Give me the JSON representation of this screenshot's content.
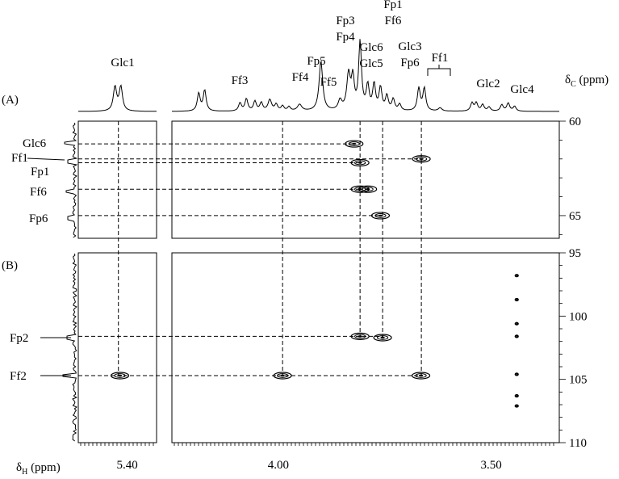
{
  "chart_data": {
    "type": "2D NMR (HSQC / HMBC)",
    "panels": [
      {
        "label": "(A)",
        "yrange": [
          60,
          66.2
        ],
        "ticks": [
          60,
          65
        ]
      },
      {
        "label": "(B)",
        "yrange": [
          95,
          110
        ],
        "ticks": [
          95,
          100,
          105,
          110
        ]
      }
    ],
    "xlabel": "δH (ppm)",
    "ylabel": "δC (ppm)",
    "xlim": [
      5.5,
      3.34
    ],
    "xticks": [
      {
        "value": 5.4,
        "label": "5.40"
      },
      {
        "value": 4.0,
        "label": "4.00"
      },
      {
        "value": 3.5,
        "label": "3.50"
      }
    ],
    "ylabels": {
      "top": "60",
      "a_low": "65",
      "b": [
        "95",
        "100",
        "105",
        "110"
      ]
    },
    "proton_peaks": [
      {
        "name": "Glc1",
        "label_lines": [
          "Glc1"
        ],
        "shift": 5.418
      },
      {
        "name": "Ff3",
        "label_lines": [
          "Ff3"
        ],
        "shift": 4.18
      },
      {
        "name": "Ff4",
        "label_lines": [
          "Ff4"
        ],
        "shift": 4.07
      },
      {
        "name": "Fp5",
        "label_lines": [
          "Fp5"
        ],
        "shift": 4.03
      },
      {
        "name": "Ff5",
        "label_lines": [
          "Ff5"
        ],
        "shift": 3.99
      },
      {
        "name": "Fp3 Fp4",
        "label_lines": [
          "Fp3",
          "Fp4"
        ],
        "shift": 3.9
      },
      {
        "name": "Glc6 Glc5",
        "label_lines": [
          "Glc6",
          "Glc5"
        ],
        "shift": 3.835
      },
      {
        "name": "Fp1 Ff6",
        "label_lines": [
          "Fp1",
          "Ff6"
        ],
        "shift": 3.807
      },
      {
        "name": "Glc3 Fp6",
        "label_lines": [
          "Glc3",
          "Fp6"
        ],
        "shift": 3.755
      },
      {
        "name": "Ff1",
        "label_lines": [
          "Ff1"
        ],
        "shift": 3.66
      },
      {
        "name": "Glc2",
        "label_lines": [
          "Glc2"
        ],
        "shift": 3.54
      },
      {
        "name": "Glc4",
        "label_lines": [
          "Glc4"
        ],
        "shift": 3.47
      }
    ],
    "carbon_labels": [
      {
        "name": "Glc6",
        "text": "Glc6",
        "delta_c": 61.2
      },
      {
        "name": "Ff1",
        "text": "Ff1",
        "delta_c": 62.0
      },
      {
        "name": "Fp1",
        "text": "Fp1",
        "delta_c": 62.2
      },
      {
        "name": "Ff6",
        "text": "Ff6",
        "delta_c": 63.6
      },
      {
        "name": "Fp6",
        "text": "Fp6",
        "delta_c": 65.0
      },
      {
        "name": "Fp2",
        "text": "Fp2",
        "delta_c": 101.7
      },
      {
        "name": "Ff2",
        "text": "Ff2",
        "delta_c": 104.7
      }
    ],
    "cross_peaks": [
      {
        "panel": "A",
        "x": 3.822,
        "y": 61.2,
        "assignment": "Glc6"
      },
      {
        "panel": "A",
        "x": 3.808,
        "y": 62.2,
        "assignment": "Fp1"
      },
      {
        "panel": "A",
        "x": 3.664,
        "y": 62.0,
        "assignment": "Ff1"
      },
      {
        "panel": "A",
        "x": 3.808,
        "y": 63.6,
        "assignment": "Ff6"
      },
      {
        "panel": "A",
        "x": 3.79,
        "y": 63.6,
        "assignment": "Ff6"
      },
      {
        "panel": "A",
        "x": 3.76,
        "y": 65.0,
        "assignment": "Fp6"
      },
      {
        "panel": "B",
        "x": 3.808,
        "y": 101.6,
        "assignment": "Fp2"
      },
      {
        "panel": "B",
        "x": 3.755,
        "y": 101.7,
        "assignment": "Fp2"
      },
      {
        "panel": "B",
        "x": 5.415,
        "y": 104.7,
        "assignment": "Ff2"
      },
      {
        "panel": "B",
        "x": 3.99,
        "y": 104.7,
        "assignment": "Ff2"
      },
      {
        "panel": "B",
        "x": 3.665,
        "y": 104.7,
        "assignment": "Ff2"
      },
      {
        "panel": "B",
        "x": 3.44,
        "y": 96.8
      },
      {
        "panel": "B",
        "x": 3.44,
        "y": 98.7
      },
      {
        "panel": "B",
        "x": 3.44,
        "y": 100.6
      },
      {
        "panel": "B",
        "x": 3.44,
        "y": 101.6
      },
      {
        "panel": "B",
        "x": 3.44,
        "y": 104.6
      },
      {
        "panel": "B",
        "x": 3.44,
        "y": 106.3
      },
      {
        "panel": "B",
        "x": 3.44,
        "y": 107.1
      }
    ],
    "dashed_links": [
      {
        "x": 5.418,
        "from_panel": "top",
        "to_y": 104.7
      },
      {
        "x": 3.99,
        "from_panel": "top",
        "to_y": 104.7
      },
      {
        "x": 3.808,
        "from_panel": "top",
        "to_y": 101.6
      },
      {
        "x": 3.755,
        "from_panel": "top",
        "to_y": 101.7
      },
      {
        "x": 3.664,
        "from_panel": "top",
        "to_y": 104.7
      }
    ]
  }
}
